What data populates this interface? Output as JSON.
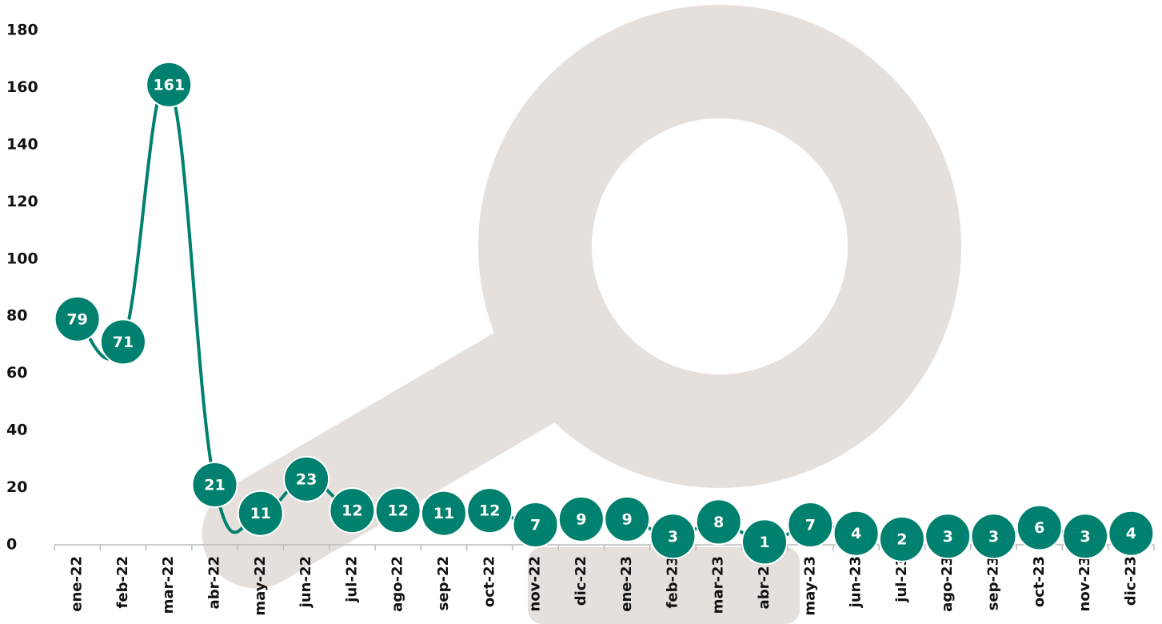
{
  "chart_data": {
    "type": "line",
    "categories": [
      "ene-22",
      "feb-22",
      "mar-22",
      "abr-22",
      "may-22",
      "jun-22",
      "jul-22",
      "ago-22",
      "sep-22",
      "oct-22",
      "nov-22",
      "dic-22",
      "ene-23",
      "feb-23",
      "mar-23",
      "abr-23",
      "may-23",
      "jun-23",
      "jul-23",
      "ago-23",
      "sep-23",
      "oct-23",
      "nov-23",
      "dic-23"
    ],
    "values": [
      79,
      71,
      161,
      21,
      11,
      23,
      12,
      12,
      11,
      12,
      7,
      9,
      9,
      3,
      8,
      1,
      7,
      4,
      2,
      3,
      3,
      6,
      3,
      4
    ],
    "color": "#00806f",
    "ylim": [
      0,
      180
    ],
    "yticks": [
      0,
      20,
      40,
      60,
      80,
      100,
      120,
      140,
      160,
      180
    ],
    "grid": false
  }
}
